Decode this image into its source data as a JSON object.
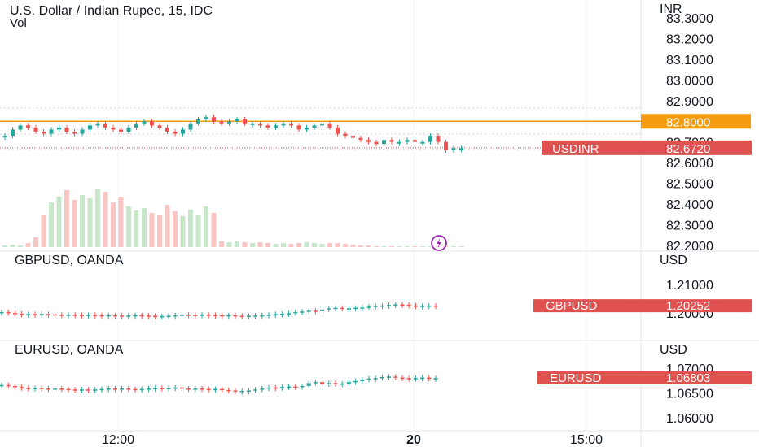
{
  "header": {
    "main_title": "U.S. Dollar / Indian Rupee, 15, IDC",
    "vol_label": "Vol",
    "pane2_title": "GBPUSD, OANDA",
    "pane3_title": "EURUSD, OANDA"
  },
  "colors": {
    "up": "#26a69a",
    "down": "#ef5350",
    "vol_up": "#c8e6c9",
    "vol_down": "#f9c6c4",
    "alert_line": "#f59b0e",
    "price_tag": "#e05250",
    "grid": "#f0f3fa"
  },
  "chart_data": [
    {
      "type": "candlestick",
      "title": "U.S. Dollar / Indian Rupee, 15, IDC",
      "currency": "INR",
      "y_ticks": [
        "83.3000",
        "83.2000",
        "83.1000",
        "83.0000",
        "82.9000",
        "82.8000",
        "82.7000",
        "82.6000",
        "82.5000",
        "82.4000",
        "82.3000",
        "82.2000"
      ],
      "alert_level": "82.8000",
      "last_symbol": "USDINR",
      "last_value": "82.6720",
      "x_ticks": [
        "12:00",
        "20",
        "15:00"
      ],
      "volume_label": "Vol",
      "close_series": [
        82.73,
        82.76,
        82.78,
        82.77,
        82.75,
        82.74,
        82.76,
        82.77,
        82.75,
        82.74,
        82.76,
        82.78,
        82.79,
        82.77,
        82.76,
        82.75,
        82.77,
        82.79,
        82.8,
        82.78,
        82.77,
        82.75,
        82.74,
        82.76,
        82.79,
        82.81,
        82.82,
        82.8,
        82.79,
        82.8,
        82.81,
        82.79,
        82.79,
        82.78,
        82.77,
        82.78,
        82.79,
        82.78,
        82.76,
        82.77,
        82.78,
        82.79,
        82.77,
        82.74,
        82.73,
        82.72,
        82.71,
        82.7,
        82.69,
        82.71,
        82.7,
        82.7,
        82.71,
        82.7,
        82.7,
        82.73,
        82.7,
        82.66,
        82.67,
        82.67
      ],
      "volume_series": [
        0.02,
        0.03,
        0.02,
        0.05,
        0.12,
        0.4,
        0.55,
        0.62,
        0.7,
        0.58,
        0.64,
        0.6,
        0.72,
        0.68,
        0.55,
        0.62,
        0.5,
        0.45,
        0.48,
        0.42,
        0.4,
        0.52,
        0.44,
        0.38,
        0.46,
        0.4,
        0.5,
        0.42,
        0.07,
        0.06,
        0.07,
        0.06,
        0.05,
        0.06,
        0.05,
        0.04,
        0.05,
        0.04,
        0.05,
        0.06,
        0.05,
        0.04,
        0.05,
        0.05,
        0.04,
        0.03,
        0.02,
        0.02,
        0.01,
        0.01,
        0.01,
        0.01,
        0.01,
        0.01,
        0.01,
        0.01,
        0.01,
        0.01,
        0.01,
        0.01
      ]
    },
    {
      "type": "candlestick",
      "title": "GBPUSD, OANDA",
      "currency": "USD",
      "y_ticks": [
        "1.21000",
        "1.20000"
      ],
      "last_symbol": "GBPUSD",
      "last_value": "1.20252",
      "close_series": [
        1.2003,
        1.2,
        1.1997,
        1.1996,
        1.1996,
        1.1995,
        1.1996,
        1.1995,
        1.1994,
        1.1993,
        1.1994,
        1.1993,
        1.1992,
        1.1993,
        1.1992,
        1.1991,
        1.1992,
        1.1991,
        1.199,
        1.1991,
        1.1992,
        1.1991,
        1.199,
        1.1988,
        1.1989,
        1.199,
        1.1992,
        1.1994,
        1.1993,
        1.1992,
        1.1994,
        1.1993,
        1.1992,
        1.1991,
        1.1992,
        1.199,
        1.1989,
        1.199,
        1.1991,
        1.1992,
        1.1994,
        1.1996,
        1.1997,
        1.1999,
        1.2003,
        1.2005,
        1.2008,
        1.2006,
        1.2012,
        1.2016,
        1.2018,
        1.2015,
        1.2016,
        1.2018,
        1.2019,
        1.2022,
        1.2025,
        1.2026,
        1.2028,
        1.203,
        1.2029,
        1.2026,
        1.2024,
        1.2025,
        1.2026,
        1.2025
      ]
    },
    {
      "type": "candlestick",
      "title": "EURUSD, OANDA",
      "currency": "USD",
      "y_ticks": [
        "1.07000",
        "1.06500",
        "1.06000"
      ],
      "last_symbol": "EURUSD",
      "last_value": "1.06803",
      "close_series": [
        1.0666,
        1.0664,
        1.0662,
        1.066,
        1.0659,
        1.066,
        1.0659,
        1.0658,
        1.0659,
        1.0658,
        1.0657,
        1.0656,
        1.0657,
        1.0656,
        1.0657,
        1.0658,
        1.0659,
        1.0658,
        1.0659,
        1.0658,
        1.0657,
        1.0658,
        1.0659,
        1.066,
        1.0659,
        1.066,
        1.0661,
        1.0659,
        1.0658,
        1.0659,
        1.0658,
        1.0657,
        1.0658,
        1.0656,
        1.0655,
        1.0653,
        1.0654,
        1.0655,
        1.0657,
        1.0659,
        1.0661,
        1.066,
        1.0662,
        1.0663,
        1.0662,
        1.0664,
        1.067,
        1.0672,
        1.0668,
        1.067,
        1.0668,
        1.0669,
        1.0672,
        1.0674,
        1.0677,
        1.0679,
        1.068,
        1.0682,
        1.0683,
        1.0681,
        1.068,
        1.0679,
        1.068,
        1.0681,
        1.068,
        1.068
      ]
    }
  ]
}
